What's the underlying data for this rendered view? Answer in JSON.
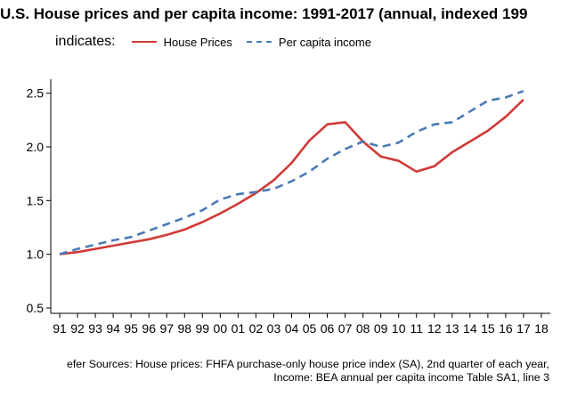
{
  "chart_data": {
    "type": "line",
    "title": "U.S. House prices and per capita income: 1991-2017 (annual, indexed 199",
    "legend": {
      "title": "indicates:",
      "placement": "top-left",
      "entries": [
        "House Prices",
        "Per capita income"
      ]
    },
    "x_tick_labels": [
      "91",
      "92",
      "93",
      "94",
      "95",
      "96",
      "97",
      "98",
      "99",
      "00",
      "01",
      "02",
      "03",
      "04",
      "05",
      "06",
      "07",
      "08",
      "09",
      "10",
      "11",
      "12",
      "13",
      "14",
      "15",
      "16",
      "17",
      "18"
    ],
    "x": [
      1991,
      1992,
      1993,
      1994,
      1995,
      1996,
      1997,
      1998,
      1999,
      2000,
      2001,
      2002,
      2003,
      2004,
      2005,
      2006,
      2007,
      2008,
      2009,
      2010,
      2011,
      2012,
      2013,
      2014,
      2015,
      2016,
      2017
    ],
    "series": [
      {
        "name": "House Prices",
        "color": "#d03a36",
        "dash": "solid",
        "values": [
          1.0,
          1.02,
          1.05,
          1.08,
          1.11,
          1.14,
          1.18,
          1.23,
          1.3,
          1.38,
          1.47,
          1.57,
          1.69,
          1.85,
          2.06,
          2.21,
          2.23,
          2.05,
          1.91,
          1.87,
          1.77,
          1.82,
          1.95,
          2.05,
          2.15,
          2.28,
          2.44
        ]
      },
      {
        "name": "Per capita income",
        "color": "#4a7ab5",
        "dash": "dashed",
        "values": [
          1.0,
          1.05,
          1.09,
          1.13,
          1.16,
          1.22,
          1.28,
          1.34,
          1.41,
          1.51,
          1.56,
          1.58,
          1.61,
          1.68,
          1.77,
          1.89,
          1.98,
          2.05,
          2.0,
          2.04,
          2.14,
          2.21,
          2.23,
          2.33,
          2.43,
          2.46,
          2.52
        ]
      }
    ],
    "y_ticks": [
      0.5,
      1.0,
      1.5,
      2.0,
      2.5
    ],
    "y_tick_labels": [
      "0.5",
      "1.0",
      "1.5",
      "2.0",
      "2.5"
    ],
    "ylim": [
      0.45,
      2.63
    ],
    "xlim": [
      1990.5,
      2018.5
    ],
    "grid": false
  },
  "source_lines": [
    "efer Sources: House prices: FHFA purchase-only house price index (SA), 2nd quarter of each year,",
    "Income: BEA annual per capita income Table SA1, line 3"
  ]
}
